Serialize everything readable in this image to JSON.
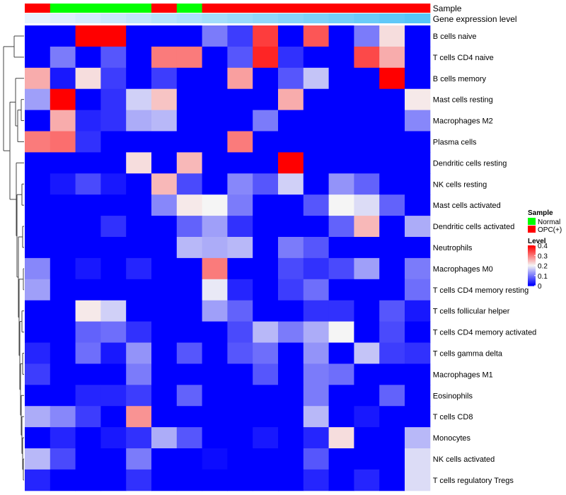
{
  "chart_data": {
    "type": "heatmap",
    "annotation_tracks": [
      {
        "name": "Sample",
        "values": [
          "OPC(+)",
          "Normal",
          "Normal",
          "Normal",
          "Normal",
          "OPC(+)",
          "Normal",
          "OPC(+)",
          "OPC(+)",
          "OPC(+)",
          "OPC(+)",
          "OPC(+)",
          "OPC(+)",
          "OPC(+)",
          "OPC(+)",
          "OPC(+)"
        ]
      },
      {
        "name": "Gene expression level",
        "values": [
          0.05,
          0.11,
          0.17,
          0.23,
          0.29,
          0.35,
          0.41,
          0.47,
          0.53,
          0.59,
          0.65,
          0.71,
          0.77,
          0.83,
          0.89,
          0.95
        ]
      }
    ],
    "rows": [
      {
        "label": "B cells naive",
        "values": [
          0,
          0,
          0.4,
          0.4,
          0,
          0,
          0,
          0.1,
          0.05,
          0.35,
          0,
          0.33,
          0,
          0.1,
          0.22,
          0
        ]
      },
      {
        "label": "T cells CD4 naive",
        "values": [
          0,
          0.1,
          0,
          0.07,
          0,
          0.3,
          0.3,
          0,
          0.07,
          0.37,
          0.04,
          0,
          0,
          0.34,
          0.26,
          0
        ]
      },
      {
        "label": "B cells memory",
        "values": [
          0.26,
          0.02,
          0.22,
          0.05,
          0,
          0.05,
          0,
          0,
          0.27,
          0,
          0.07,
          0.16,
          0,
          0,
          0.4,
          0
        ]
      },
      {
        "label": "Mast cells resting",
        "values": [
          0.13,
          0.4,
          0,
          0.04,
          0.17,
          0.24,
          0,
          0,
          0,
          0,
          0.26,
          0,
          0,
          0,
          0,
          0.21
        ]
      },
      {
        "label": "Macrophages M2",
        "values": [
          0,
          0.26,
          0.03,
          0.04,
          0.14,
          0.15,
          0,
          0,
          0,
          0.1,
          0,
          0,
          0,
          0,
          0,
          0.11
        ]
      },
      {
        "label": "Plasma cells",
        "values": [
          0.3,
          0.31,
          0.04,
          0,
          0,
          0,
          0,
          0,
          0.3,
          0,
          0,
          0,
          0,
          0,
          0,
          0
        ]
      },
      {
        "label": "Dendritic cells resting",
        "values": [
          0,
          0,
          0,
          0,
          0.22,
          0,
          0.25,
          0,
          0,
          0,
          0.4,
          0,
          0,
          0,
          0,
          0
        ]
      },
      {
        "label": "NK cells resting",
        "values": [
          0,
          0.02,
          0.06,
          0.02,
          0,
          0.25,
          0.06,
          0,
          0.11,
          0.07,
          0.17,
          0,
          0.12,
          0.08,
          0,
          0
        ]
      },
      {
        "label": "Mast cells activated",
        "values": [
          0,
          0,
          0,
          0,
          0,
          0.11,
          0.21,
          0.2,
          0.1,
          0,
          0,
          0.07,
          0.2,
          0.18,
          0.08,
          0
        ]
      },
      {
        "label": "Dendritic cells activated",
        "values": [
          0,
          0,
          0,
          0.04,
          0,
          0,
          0.08,
          0.13,
          0.04,
          0,
          0,
          0,
          0.08,
          0.25,
          0,
          0.14
        ]
      },
      {
        "label": "Neutrophils",
        "values": [
          0,
          0,
          0,
          0,
          0,
          0,
          0.15,
          0.14,
          0.15,
          0,
          0.1,
          0.07,
          0,
          0,
          0,
          0
        ]
      },
      {
        "label": "Macrophages M0",
        "values": [
          0.11,
          0,
          0.02,
          0,
          0.03,
          0,
          0,
          0.3,
          0,
          0,
          0.06,
          0.04,
          0.06,
          0.13,
          0,
          0.1
        ]
      },
      {
        "label": "T cells CD4 memory resting",
        "values": [
          0.13,
          0,
          0,
          0,
          0,
          0,
          0,
          0.19,
          0.03,
          0,
          0.05,
          0.09,
          0,
          0,
          0,
          0.09
        ]
      },
      {
        "label": "T cells follicular helper",
        "values": [
          0,
          0,
          0.21,
          0.17,
          0,
          0,
          0,
          0.13,
          0.08,
          0,
          0,
          0.04,
          0.04,
          0,
          0.07,
          0.02
        ]
      },
      {
        "label": "T cells CD4 memory activated",
        "values": [
          0,
          0,
          0.08,
          0.09,
          0.04,
          0,
          0,
          0,
          0.06,
          0.15,
          0.1,
          0.14,
          0.2,
          0,
          0.06,
          0
        ]
      },
      {
        "label": "T cells gamma delta",
        "values": [
          0.03,
          0,
          0.09,
          0.02,
          0.12,
          0,
          0.07,
          0,
          0.07,
          0.09,
          0,
          0.12,
          0,
          0.16,
          0.05,
          0.04
        ]
      },
      {
        "label": "Macrophages M1",
        "values": [
          0.05,
          0,
          0,
          0,
          0.1,
          0,
          0,
          0,
          0,
          0.07,
          0,
          0.1,
          0.09,
          0,
          0,
          0
        ]
      },
      {
        "label": "Eosinophils",
        "values": [
          0,
          0,
          0.03,
          0.03,
          0.05,
          0,
          0.08,
          0,
          0,
          0,
          0,
          0.1,
          0,
          0,
          0.08,
          0
        ]
      },
      {
        "label": "T cells CD8",
        "values": [
          0.14,
          0.11,
          0.05,
          0,
          0.28,
          0,
          0,
          0,
          0,
          0,
          0,
          0.15,
          0,
          0.02,
          0,
          0
        ]
      },
      {
        "label": "Monocytes",
        "values": [
          0,
          0.03,
          0,
          0.02,
          0.04,
          0.14,
          0.07,
          0,
          0,
          0.02,
          0,
          0.03,
          0.22,
          0,
          0,
          0.15
        ]
      },
      {
        "label": "NK cells activated",
        "values": [
          0.15,
          0.06,
          0,
          0,
          0.1,
          0,
          0,
          0.01,
          0,
          0,
          0,
          0.07,
          0,
          0,
          0,
          0.18
        ]
      },
      {
        "label": "T cells regulatory  Tregs",
        "values": [
          0.03,
          0,
          0,
          0,
          0.04,
          0,
          0,
          0,
          0,
          0,
          0,
          0.03,
          0,
          0.03,
          0,
          0.18
        ]
      }
    ],
    "color_scale": {
      "low": "#0000ff",
      "mid": "#f5f5f5",
      "high": "#ff0000",
      "domain": [
        0,
        0.4
      ],
      "midpoint": 0.2
    },
    "legend": [
      {
        "title": "Sample",
        "items": [
          {
            "label": "Normal",
            "color": "#00ff00"
          },
          {
            "label": "OPC(+)",
            "color": "#ff0000"
          }
        ]
      },
      {
        "title": "Level",
        "ticks": [
          "0.4",
          "0.3",
          "0.2",
          "0.1",
          "0"
        ],
        "tick_values": [
          0.4,
          0.3,
          0.2,
          0.1,
          0
        ]
      }
    ],
    "colors": {
      "sample_normal": "#00ff00",
      "sample_opc": "#ff0000",
      "expr_low": "#eef4ff",
      "expr_high": "#4fc3f7"
    }
  }
}
